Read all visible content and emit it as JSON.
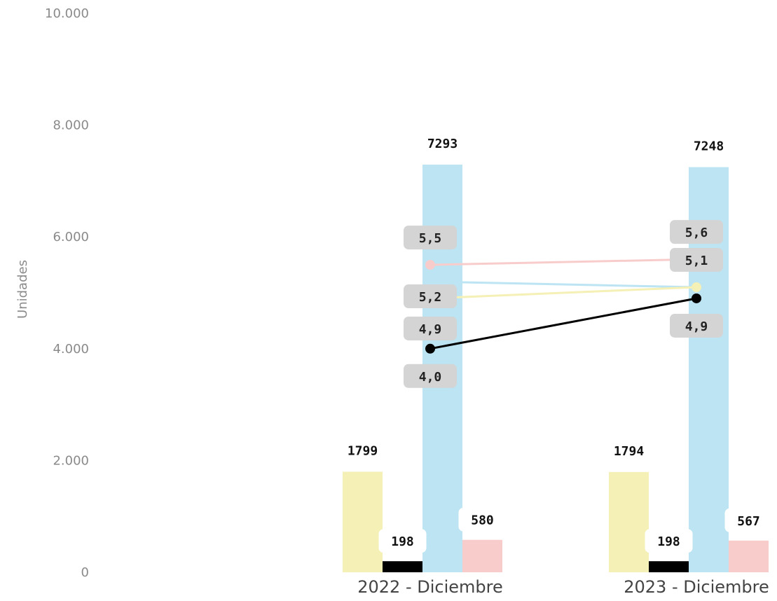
{
  "chart_data": {
    "type": "bar",
    "ylabel": "Unidades",
    "ylim": [
      0,
      10000
    ],
    "yticks": [
      {
        "value": 0,
        "label": "0"
      },
      {
        "value": 2000,
        "label": "2.000"
      },
      {
        "value": 4000,
        "label": "4.000"
      },
      {
        "value": 6000,
        "label": "6.000"
      },
      {
        "value": 8000,
        "label": "8.000"
      },
      {
        "value": 10000,
        "label": "10.000"
      }
    ],
    "categories": [
      "2022 - Diciembre",
      "2023 - Diciembre"
    ],
    "bar_series": [
      {
        "color": "#f5f0b5",
        "values": [
          1799,
          1794
        ],
        "labels": [
          "1799",
          "1794"
        ]
      },
      {
        "color": "#000000",
        "values": [
          198,
          198
        ],
        "labels": [
          "198",
          "198"
        ]
      },
      {
        "color": "#bde4f2",
        "values": [
          7293,
          7248
        ],
        "labels": [
          "7293",
          "7248"
        ]
      },
      {
        "color": "#f9cccc",
        "values": [
          580,
          567
        ],
        "labels": [
          "580",
          "567"
        ]
      }
    ],
    "line_series": [
      {
        "color": "#f9cccc",
        "values": [
          5.5,
          5.6
        ],
        "labels": [
          "5,5",
          "5,6"
        ]
      },
      {
        "color": "#bde4f2",
        "values": [
          5.2,
          5.1
        ],
        "labels": [
          "5,2",
          "5,1"
        ]
      },
      {
        "color": "#f5f0b5",
        "values": [
          4.9,
          5.1
        ],
        "labels": [
          "4,9",
          ""
        ]
      },
      {
        "color": "#000000",
        "values": [
          4.0,
          4.9
        ],
        "labels": [
          "4,0",
          "4,9"
        ]
      }
    ]
  }
}
